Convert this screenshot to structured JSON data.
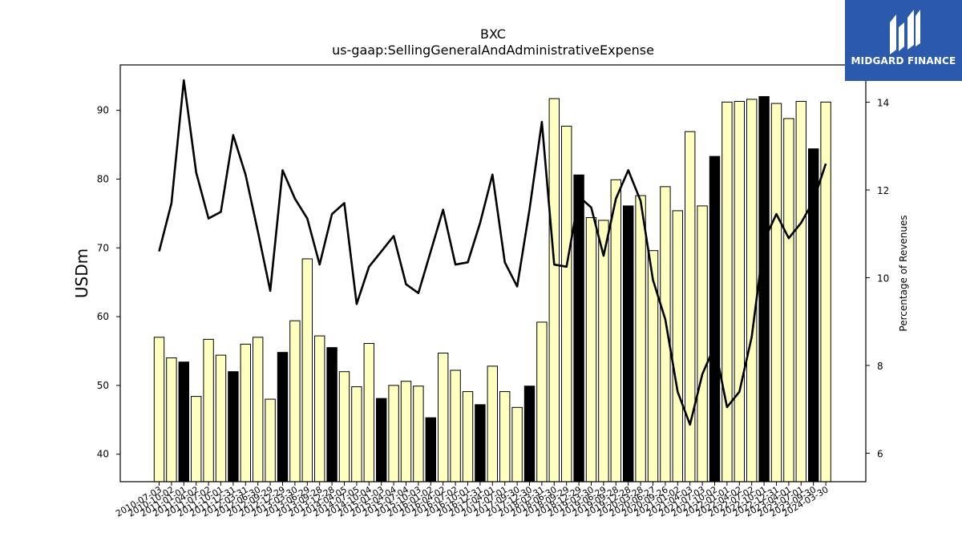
{
  "logo": {
    "text": "MIDGARD FINANCE",
    "bg_color": "#2b5aad"
  },
  "chart_data": {
    "type": "bar",
    "title": "BXC",
    "subtitle": "us-gaap:SellingGeneralAndAdministrativeExpense",
    "ylabel": "USDm",
    "y2label": "Percentage of Revenues",
    "ylim": [
      36,
      96.6
    ],
    "y2lim": [
      5.35,
      14.85
    ],
    "yticks": [
      40,
      50,
      60,
      70,
      80,
      90
    ],
    "y2ticks": [
      6,
      8,
      10,
      12,
      14
    ],
    "grid": false,
    "colors": {
      "bar_default": "#ffffc0",
      "bar_highlight": "#000000",
      "line": "#000000"
    },
    "categories": [
      "2010-07-03",
      "2010-10-02",
      "2011-01-01",
      "2011-04-02",
      "2011-07-02",
      "2011-10-01",
      "2011-12-31",
      "2012-03-31",
      "2012-06-30",
      "2012-09-29",
      "2012-12-29",
      "2013-03-30",
      "2013-06-29",
      "2013-09-28",
      "2013-12-28",
      "2014-04-05",
      "2014-07-05",
      "2014-10-04",
      "2015-01-03",
      "2015-04-04",
      "2015-07-04",
      "2015-10-03",
      "2016-01-02",
      "2016-04-02",
      "2016-07-02",
      "2016-10-01",
      "2016-12-31",
      "2017-04-01",
      "2017-07-01",
      "2017-09-30",
      "2017-12-30",
      "2018-03-31",
      "2018-06-30",
      "2018-09-29",
      "2018-12-29",
      "2019-03-30",
      "2019-06-29",
      "2019-09-28",
      "2019-12-28",
      "2020-03-28",
      "2020-06-27",
      "2020-09-26",
      "2021-01-02",
      "2021-04-03",
      "2021-07-03",
      "2021-10-02",
      "2022-01-01",
      "2022-04-02",
      "2022-07-02",
      "2022-10-01",
      "2022-12-31",
      "2023-04-01",
      "2023-07-01",
      "2023-09-30",
      "2024-03-30"
    ],
    "series": [
      {
        "type": "bar",
        "values": [
          57.0,
          54.0,
          53.4,
          48.4,
          56.7,
          54.4,
          52.0,
          56.0,
          57.0,
          48.0,
          54.8,
          59.4,
          68.4,
          57.2,
          55.5,
          52.0,
          49.8,
          56.1,
          48.1,
          50.0,
          50.6,
          49.9,
          45.3,
          54.7,
          52.2,
          49.1,
          47.2,
          52.8,
          49.1,
          46.8,
          49.9,
          59.2,
          91.7,
          87.7,
          80.6,
          74.4,
          74.0,
          79.9,
          76.1,
          77.6,
          69.6,
          78.9,
          75.4,
          86.9,
          76.1,
          83.3,
          91.2,
          91.3,
          91.6,
          92.0,
          91.0,
          88.8,
          91.3,
          84.4,
          91.2
        ],
        "highlight": [
          false,
          false,
          true,
          false,
          false,
          false,
          true,
          false,
          false,
          false,
          true,
          false,
          false,
          false,
          true,
          false,
          false,
          false,
          true,
          false,
          false,
          false,
          true,
          false,
          false,
          false,
          true,
          false,
          false,
          false,
          true,
          false,
          false,
          false,
          true,
          false,
          false,
          false,
          true,
          false,
          false,
          false,
          false,
          false,
          false,
          true,
          false,
          false,
          false,
          true,
          false,
          false,
          false,
          true,
          false
        ]
      },
      {
        "type": "line",
        "axis": "right",
        "values": [
          10.6,
          11.7,
          14.5,
          12.4,
          11.35,
          11.5,
          13.25,
          12.35,
          11.05,
          9.7,
          12.45,
          11.8,
          11.35,
          10.3,
          11.45,
          11.7,
          9.4,
          10.25,
          10.6,
          10.95,
          9.85,
          9.65,
          10.6,
          11.55,
          10.3,
          10.35,
          11.25,
          12.35,
          10.35,
          9.8,
          11.55,
          13.55,
          10.3,
          10.25,
          11.85,
          11.6,
          10.5,
          11.8,
          12.45,
          11.75,
          9.95,
          9.05,
          7.4,
          6.65,
          7.8,
          8.45,
          7.05,
          7.4,
          8.65,
          10.85,
          11.45,
          10.9,
          11.25,
          11.75,
          12.6
        ]
      }
    ]
  }
}
